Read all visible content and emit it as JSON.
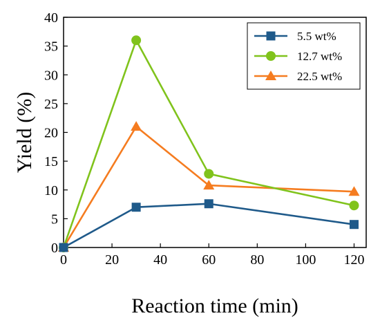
{
  "chart_data": {
    "type": "line",
    "title": "",
    "xlabel": "Reaction time (min)",
    "ylabel": "Yield (%)",
    "xlim": [
      0,
      125
    ],
    "ylim": [
      0,
      40
    ],
    "xticks": [
      0,
      20,
      40,
      60,
      80,
      100,
      120
    ],
    "yticks": [
      0,
      5,
      10,
      15,
      20,
      25,
      30,
      35,
      40
    ],
    "xtick_labels": [
      "0",
      "20",
      "40",
      "60",
      "80",
      "100",
      "120"
    ],
    "ytick_labels": [
      "0",
      "5",
      "10",
      "15",
      "20",
      "25",
      "30",
      "35",
      "40"
    ],
    "grid": false,
    "legend_position": "top-right",
    "x": [
      0,
      30,
      60,
      120
    ],
    "series": [
      {
        "name": "5.5 wt%",
        "values": [
          0,
          7.0,
          7.6,
          4.0
        ],
        "color": "#1f5a8a",
        "marker": "square"
      },
      {
        "name": "12.7 wt%",
        "values": [
          0,
          36.0,
          12.8,
          7.3
        ],
        "color": "#80c31c",
        "marker": "circle"
      },
      {
        "name": "22.5 wt%",
        "values": [
          0,
          21.0,
          10.8,
          9.7
        ],
        "color": "#f57c20",
        "marker": "triangle"
      }
    ]
  }
}
